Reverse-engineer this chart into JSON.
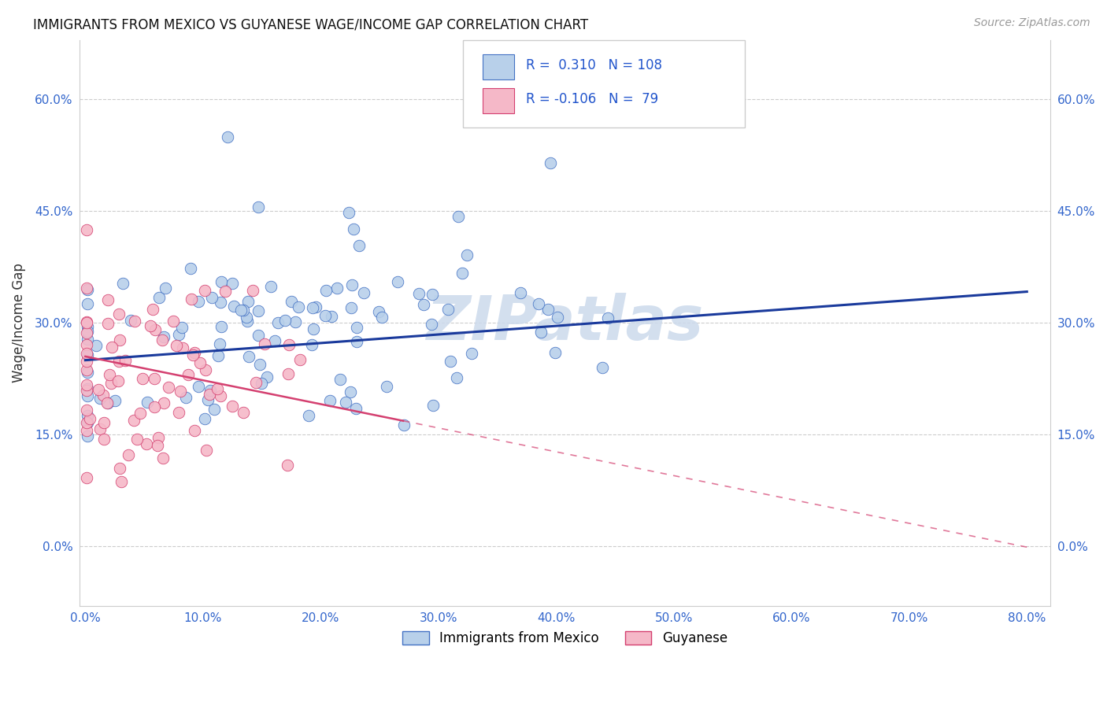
{
  "title": "IMMIGRANTS FROM MEXICO VS GUYANESE WAGE/INCOME GAP CORRELATION CHART",
  "source": "Source: ZipAtlas.com",
  "ylabel": "Wage/Income Gap",
  "xlim": [
    -0.005,
    0.82
  ],
  "ylim": [
    -0.08,
    0.68
  ],
  "xticks": [
    0.0,
    0.1,
    0.2,
    0.3,
    0.4,
    0.5,
    0.6,
    0.7,
    0.8
  ],
  "xticklabels": [
    "0.0%",
    "10.0%",
    "20.0%",
    "30.0%",
    "40.0%",
    "50.0%",
    "60.0%",
    "70.0%",
    "80.0%"
  ],
  "yticks": [
    0.0,
    0.15,
    0.3,
    0.45,
    0.6
  ],
  "yticklabels": [
    "0.0%",
    "15.0%",
    "30.0%",
    "45.0%",
    "60.0%"
  ],
  "blue_fill": "#b8d0ea",
  "blue_edge": "#4472c4",
  "pink_fill": "#f5b8c8",
  "pink_edge": "#d44070",
  "blue_line_color": "#1a3a9c",
  "pink_line_color": "#d44070",
  "background_color": "#ffffff",
  "watermark": "ZIPatlas",
  "watermark_color": "#ccdaec",
  "label_mexico": "Immigrants from Mexico",
  "label_guyanese": "Guyanese",
  "blue_R": 0.31,
  "blue_N": 108,
  "pink_R": -0.106,
  "pink_N": 79,
  "blue_intercept": 0.25,
  "blue_slope": 0.115,
  "pink_intercept": 0.255,
  "pink_slope": -0.32,
  "legend_R1_val": "0.310",
  "legend_N1_val": "108",
  "legend_R2_val": "-0.106",
  "legend_N2_val": "79",
  "seed": 42
}
